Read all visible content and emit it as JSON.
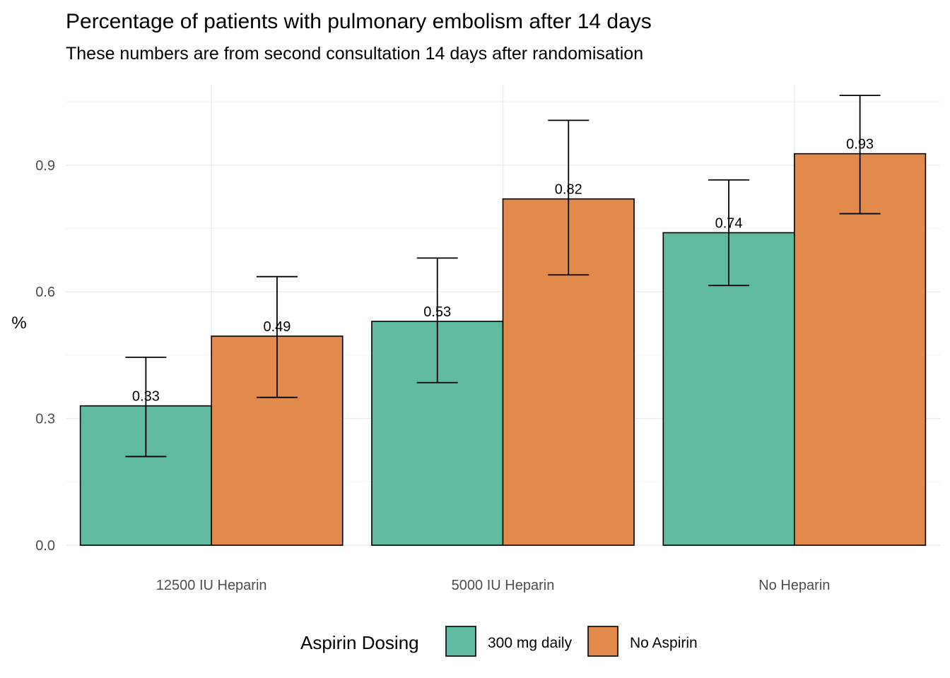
{
  "chart_data": {
    "type": "bar",
    "title": "Percentage of patients with pulmonary embolism after 14 days",
    "subtitle": "These numbers are from second consultation 14 days after randomisation",
    "xlabel": "",
    "ylabel": "%",
    "categories": [
      "12500 IU Heparin",
      "5000 IU Heparin",
      "No Heparin"
    ],
    "series": [
      {
        "name": "300 mg daily",
        "color": "#5fba9f",
        "values": [
          0.33,
          0.53,
          0.74
        ],
        "labels": [
          "0.33",
          "0.53",
          "0.74"
        ],
        "error_low": [
          0.21,
          0.385,
          0.615
        ],
        "error_high": [
          0.445,
          0.68,
          0.865
        ]
      },
      {
        "name": "No Aspirin",
        "color": "#e28a4c",
        "values": [
          0.495,
          0.82,
          0.927
        ],
        "labels": [
          "0.49",
          "0.82",
          "0.93"
        ],
        "error_low": [
          0.35,
          0.64,
          0.785
        ],
        "error_high": [
          0.636,
          1.006,
          1.065
        ]
      }
    ],
    "ylim": [
      0,
      1.05
    ],
    "yticks": [
      0.0,
      0.3,
      0.6,
      0.9
    ],
    "ytick_labels": [
      "0.0",
      "0.3",
      "0.6",
      "0.9"
    ],
    "grid": true,
    "legend": {
      "title": "Aspirin Dosing",
      "position": "bottom"
    }
  }
}
